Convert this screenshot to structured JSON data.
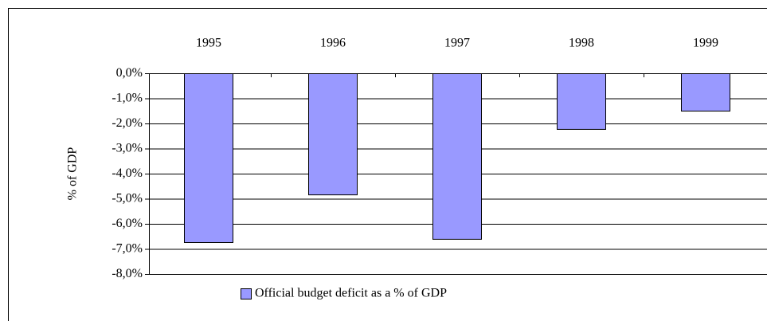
{
  "chart_data": {
    "type": "bar",
    "y_label": "% of GDP",
    "categories": [
      "1995",
      "1996",
      "1997",
      "1998",
      "1999"
    ],
    "series": [
      {
        "name": "Official budget deficit as a % of GDP",
        "color": "#9999ff",
        "values": [
          -6.73,
          -4.83,
          -6.6,
          -2.22,
          -1.49
        ]
      }
    ],
    "ylim": [
      -8,
      0
    ],
    "yticks": [
      {
        "value": 0,
        "label": "0,0%"
      },
      {
        "value": -1,
        "label": "-1,0%"
      },
      {
        "value": -2,
        "label": "-2,0%"
      },
      {
        "value": -3,
        "label": "-3,0%"
      },
      {
        "value": -4,
        "label": "-4,0%"
      },
      {
        "value": -5,
        "label": "-5,0%"
      },
      {
        "value": -6,
        "label": "-6,0%"
      },
      {
        "value": -7,
        "label": "-7,0%"
      },
      {
        "value": -8,
        "label": "-8,0%"
      }
    ],
    "grid": true
  }
}
